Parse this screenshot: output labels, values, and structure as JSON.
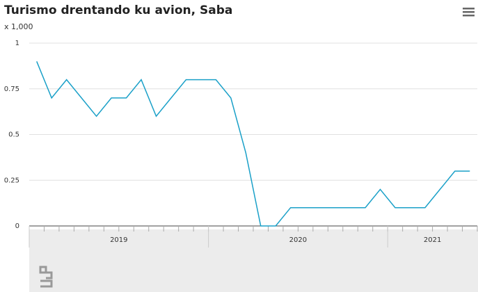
{
  "chart_data": {
    "type": "line",
    "title": "Turismo drentando ku avion, Saba",
    "y_unit": "x 1,000",
    "categories": [
      null,
      null,
      null,
      null,
      null,
      null,
      null,
      null,
      null,
      null,
      null,
      null,
      null,
      null,
      null,
      null,
      null,
      null,
      null,
      null,
      null,
      null,
      null,
      null,
      null,
      null,
      null,
      null,
      null,
      null
    ],
    "x_groups": [
      {
        "label": "2019",
        "months": 12
      },
      {
        "label": "2020",
        "months": 12
      },
      {
        "label": "2021",
        "months": 6
      }
    ],
    "series": [
      {
        "color": "#1aa0c8",
        "values": [
          0.9,
          0.7,
          0.8,
          0.7,
          0.6,
          0.7,
          0.7,
          0.8,
          0.6,
          0.7,
          0.8,
          0.8,
          0.8,
          0.7,
          0.4,
          0,
          0,
          0.1,
          0.1,
          0.1,
          0.1,
          0.1,
          0.1,
          0.2,
          0.1,
          0.1,
          0.1,
          0.2,
          0.3,
          0.3
        ]
      }
    ],
    "ylim": [
      0,
      1
    ],
    "yticks": [
      0,
      0.25,
      0.5,
      0.75,
      1
    ],
    "grid": true
  }
}
